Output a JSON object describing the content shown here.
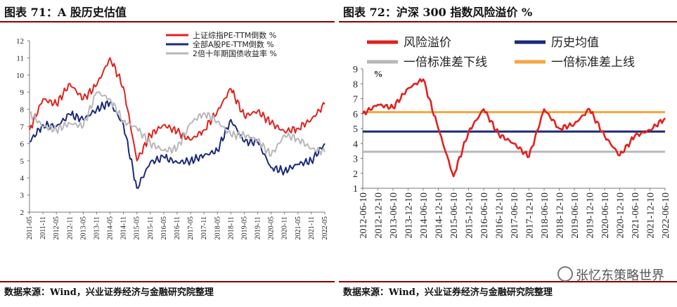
{
  "left": {
    "title": "图表 71：A 股历史估值",
    "source": "数据来源：Wind，兴业证券经济与金融研究院整理"
  },
  "right": {
    "title": "图表 72：沪深 300 指数风险溢价 %",
    "source": "数据来源：Wind，兴业证券经济与金融研究院整理"
  },
  "watermark": "张忆东策略世界",
  "colors": {
    "red": "#e0221e",
    "navy": "#1c2a7a",
    "gray": "#b8b8b8",
    "orange": "#f5a641",
    "rule": "#8c0000"
  },
  "chart_data": [
    {
      "type": "line",
      "title": "",
      "xlabel": "",
      "ylabel": "",
      "ylim": [
        2,
        12
      ],
      "yticks": [
        2,
        3,
        4,
        5,
        6,
        7,
        8,
        9,
        10,
        11,
        12
      ],
      "x": [
        "2011-05",
        "2011-11",
        "2012-05",
        "2012-11",
        "2013-05",
        "2013-11",
        "2014-05",
        "2014-11",
        "2015-05",
        "2015-11",
        "2016-05",
        "2016-11",
        "2017-05",
        "2017-11",
        "2018-05",
        "2018-11",
        "2019-05",
        "2019-11",
        "2020-05",
        "2020-11",
        "2021-05",
        "2021-11",
        "2022-05"
      ],
      "legend_position": "top-right",
      "series": [
        {
          "name": "上证综指PE-TTM倒数 %",
          "color": "#e0221e",
          "values": [
            6.8,
            8.6,
            8.3,
            9.5,
            8.6,
            9.4,
            11.0,
            9.3,
            5.0,
            6.5,
            7.1,
            6.7,
            6.2,
            6.8,
            7.9,
            9.2,
            7.6,
            7.9,
            7.2,
            6.7,
            6.9,
            7.4,
            8.3
          ]
        },
        {
          "name": "全部A股PE-TTM倒数 %",
          "color": "#1c2a7a",
          "values": [
            6.1,
            7.1,
            7.0,
            7.7,
            7.4,
            8.0,
            8.4,
            7.1,
            3.4,
            4.9,
            5.2,
            4.9,
            5.0,
            5.3,
            5.6,
            7.4,
            6.1,
            6.1,
            4.6,
            4.4,
            4.8,
            5.0,
            6.0
          ]
        },
        {
          "name": "2倍十年期国债收益率 %",
          "color": "#b8b8b8",
          "values": [
            7.8,
            7.0,
            6.8,
            7.2,
            7.0,
            9.0,
            8.6,
            7.3,
            6.9,
            6.0,
            5.6,
            5.7,
            7.2,
            7.8,
            7.3,
            6.5,
            6.5,
            6.2,
            5.3,
            6.5,
            6.3,
            5.7,
            5.5
          ]
        }
      ]
    },
    {
      "type": "line",
      "title": "",
      "xlabel": "",
      "ylabel": "%",
      "ylim": [
        1,
        9
      ],
      "yticks": [
        1,
        2,
        3,
        4,
        5,
        6,
        7,
        8,
        9
      ],
      "x": [
        "2012-06-10",
        "2012-12-10",
        "2013-06-10",
        "2013-12-10",
        "2014-06-10",
        "2014-12-10",
        "2015-06-10",
        "2015-12-10",
        "2016-06-10",
        "2016-12-10",
        "2017-06-10",
        "2017-12-10",
        "2018-06-10",
        "2018-12-10",
        "2019-06-10",
        "2019-12-10",
        "2020-06-10",
        "2020-12-10",
        "2021-06-10",
        "2021-12-10",
        "2022-06-10"
      ],
      "legend_position": "top",
      "series": [
        {
          "name": "风险溢价",
          "color": "#e0221e",
          "values": [
            6.0,
            6.6,
            6.4,
            7.7,
            8.3,
            5.0,
            1.8,
            4.8,
            6.3,
            4.6,
            4.0,
            3.1,
            6.3,
            5.0,
            5.3,
            6.3,
            4.5,
            3.2,
            4.5,
            4.9,
            5.7
          ]
        },
        {
          "name": "历史均值",
          "color": "#1c2a7a",
          "constant": 4.8
        },
        {
          "name": "一倍标准差下线",
          "color": "#b8b8b8",
          "constant": 3.45
        },
        {
          "name": "一倍标准差上线",
          "color": "#f5a641",
          "constant": 6.1
        }
      ]
    }
  ]
}
